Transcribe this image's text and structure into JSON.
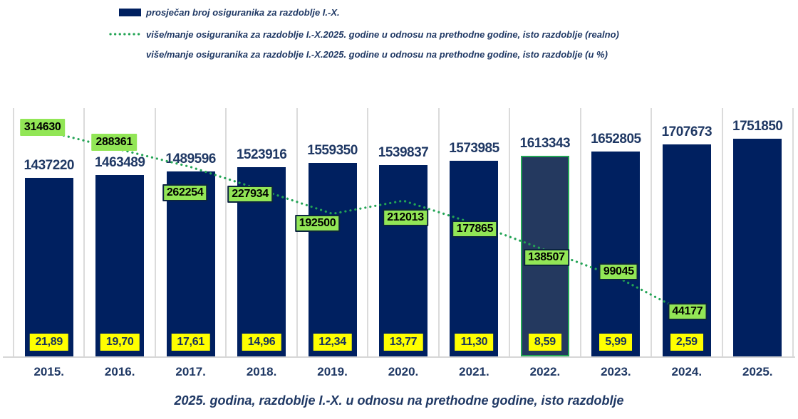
{
  "legend": {
    "items": [
      {
        "label": "prosječan broj osiguranika za razdoblje I.-X.",
        "swatch": "bar"
      },
      {
        "label": "više/manje osiguranika za razdoblje I.-X.2025. godine u odnosu na prethodne godine, isto razdoblje (realno)",
        "swatch": "dotted-line"
      },
      {
        "label": "više/manje osiguranika za razdoblje I.-X.2025. godine u odnosu na prethodne godine, isto razdoblje (u %)",
        "swatch": "none"
      }
    ]
  },
  "chart_data": {
    "type": "combo-bar-line",
    "title": "2025. godina, razdoblje I.-X. u odnosu na prethodne godine, isto razdoblje",
    "categories": [
      "2015.",
      "2016.",
      "2017.",
      "2018.",
      "2019.",
      "2020.",
      "2021.",
      "2022.",
      "2023.",
      "2024.",
      "2025."
    ],
    "series": [
      {
        "name": "prosječan broj osiguranika za razdoblje I.-X.",
        "type": "bar",
        "axis": "primary",
        "values": [
          1437220,
          1463489,
          1489596,
          1523916,
          1559350,
          1539837,
          1573985,
          1613343,
          1652805,
          1707673,
          1751850
        ]
      },
      {
        "name": "više/manje osiguranika za razdoblje I.-X.2025. godine u odnosu na prethodne godine, isto razdoblje (realno)",
        "type": "line-dotted",
        "axis": "secondary",
        "values": [
          314630,
          288361,
          262254,
          227934,
          192500,
          212013,
          177865,
          138507,
          99045,
          44177,
          null
        ]
      },
      {
        "name": "više/manje osiguranika za razdoblje I.-X.2025. godine u odnosu na prethodne godine, isto razdoblje (u %)",
        "type": "data-labels",
        "values": [
          "21,89",
          "19,70",
          "17,61",
          "14,96",
          "12,34",
          "13,77",
          "11,30",
          "8,59",
          "5,99",
          "2,59",
          null
        ]
      }
    ],
    "highlighted_category": "2022.",
    "primary_axis": {
      "min": 0,
      "max": 2000000,
      "labels_visible": false
    },
    "secondary_axis": {
      "min": 0,
      "max": 350000,
      "labels_visible": false
    },
    "gridlines": "vertical-category-separators",
    "legend_position": "top-left"
  },
  "colors": {
    "bar": "#002060",
    "bar_highlight_fill": "#24395F",
    "bar_highlight_border": "#23A455",
    "line": "#23A455",
    "green_label_bg": "#92E656",
    "green_label_border": "#0B2440",
    "yellow_label_bg": "#FFFF00",
    "text_navy": "#1F3864",
    "gridline": "#DBDBDB"
  }
}
